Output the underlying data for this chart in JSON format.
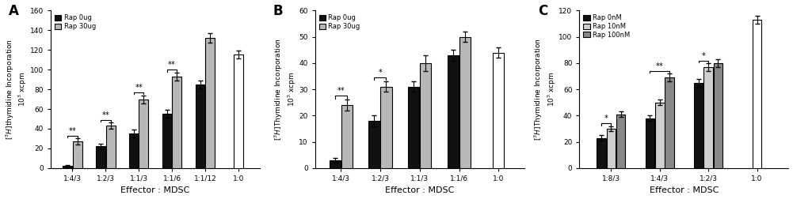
{
  "A": {
    "title": "A",
    "categories": [
      "1:4/3",
      "1:2/3",
      "1:1/3",
      "1:1/6",
      "1:1/12",
      "1:0"
    ],
    "series": [
      {
        "label": "Rap 0ug",
        "color": "#111111",
        "values": [
          2,
          22,
          35,
          55,
          85,
          115
        ],
        "errors": [
          1,
          3,
          4,
          4,
          4,
          4
        ],
        "is_outline": [
          false,
          false,
          false,
          false,
          false,
          false
        ]
      },
      {
        "label": "Rap 30ug",
        "color": "#b8b8b8",
        "values": [
          27,
          43,
          70,
          93,
          132,
          null
        ],
        "errors": [
          3,
          3,
          4,
          4,
          5,
          null
        ],
        "is_outline": [
          false,
          false,
          false,
          false,
          false,
          false
        ]
      }
    ],
    "solo_bar": {
      "value": 115,
      "error": 4,
      "color": "white"
    },
    "ylabel": "$[^{3}H]$thymidine Incorporation\n$10^{3}$ xcpm",
    "xlabel": "Effector : MDSC",
    "ylim": [
      0,
      160
    ],
    "yticks": [
      0,
      20,
      40,
      60,
      80,
      100,
      120,
      140,
      160
    ],
    "sig_pairs": [
      {
        "ci": 0,
        "s1": 0,
        "s2": 1,
        "label": "**"
      },
      {
        "ci": 1,
        "s1": 0,
        "s2": 1,
        "label": "**"
      },
      {
        "ci": 2,
        "s1": 0,
        "s2": 1,
        "label": "**"
      },
      {
        "ci": 3,
        "s1": 0,
        "s2": 1,
        "label": "**"
      }
    ]
  },
  "B": {
    "title": "B",
    "categories": [
      "1:4/3",
      "1:2/3",
      "1:1/3",
      "1:1/6",
      "1:0"
    ],
    "series": [
      {
        "label": "Rap 0ug",
        "color": "#111111",
        "values": [
          3,
          18,
          31,
          43,
          44
        ],
        "errors": [
          1,
          2,
          2,
          2,
          2
        ]
      },
      {
        "label": "Rap 30ug",
        "color": "#b8b8b8",
        "values": [
          24,
          31,
          40,
          50,
          null
        ],
        "errors": [
          2,
          2,
          3,
          2,
          null
        ]
      }
    ],
    "solo_bar": {
      "value": 44,
      "error": 2,
      "color": "white"
    },
    "ylabel": "$[^{3}H]$Thymidine Incorporation\n$10^{3}$ xcpm",
    "xlabel": "Effector : MDSC",
    "ylim": [
      0,
      60
    ],
    "yticks": [
      0,
      10,
      20,
      30,
      40,
      50,
      60
    ],
    "sig_pairs": [
      {
        "ci": 0,
        "s1": 0,
        "s2": 1,
        "label": "**"
      },
      {
        "ci": 1,
        "s1": 0,
        "s2": 1,
        "label": "*"
      }
    ]
  },
  "C": {
    "title": "C",
    "categories": [
      "1:8/3",
      "1:4/3",
      "1:2/3",
      "1:0"
    ],
    "series": [
      {
        "label": "Rap 0nM",
        "color": "#111111",
        "values": [
          23,
          38,
          65,
          113
        ],
        "errors": [
          2,
          2,
          3,
          3
        ]
      },
      {
        "label": "Rap 10nM",
        "color": "#d0d0d0",
        "values": [
          30,
          50,
          77,
          null
        ],
        "errors": [
          2,
          2,
          3,
          null
        ]
      },
      {
        "label": "Rap 100nM",
        "color": "#888888",
        "values": [
          41,
          69,
          80,
          null
        ],
        "errors": [
          2,
          3,
          3,
          null
        ]
      }
    ],
    "solo_bar": {
      "value": 113,
      "error": 3,
      "color": "white"
    },
    "ylabel": "$[^{3}H]$Thymidine Incorporation\n$10^{3}$ xcpm",
    "xlabel": "Effector : MDSC",
    "ylim": [
      0,
      120
    ],
    "yticks": [
      0,
      20,
      40,
      60,
      80,
      100,
      120
    ],
    "sig_pairs": [
      {
        "ci": 0,
        "s1": 0,
        "s2": 1,
        "label": "*"
      },
      {
        "ci": 1,
        "s1": 0,
        "s2": 2,
        "label": "**"
      },
      {
        "ci": 2,
        "s1": 0,
        "s2": 1,
        "label": "*"
      }
    ]
  }
}
